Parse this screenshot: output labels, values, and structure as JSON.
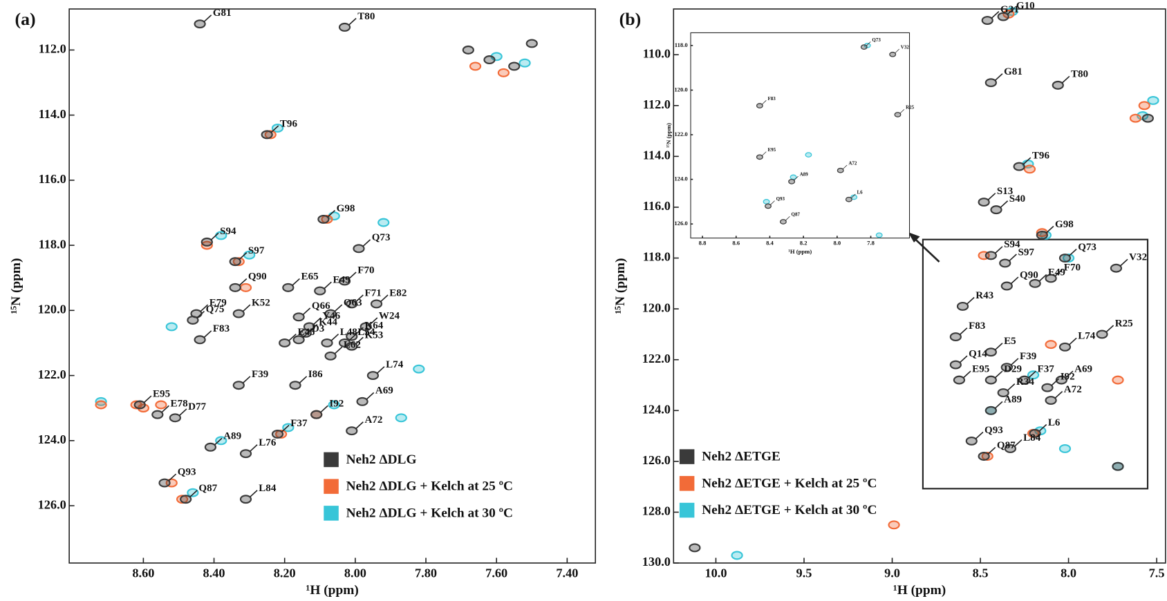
{
  "chart_data": [
    {
      "type": "scatter",
      "title": "(a)",
      "x_label": "¹H (ppm)",
      "y_label": "¹⁵N (ppm)",
      "xlim": [
        8.81,
        7.32
      ],
      "ylim": [
        127.76,
        110.74
      ],
      "xticks": [
        {
          "value": 8.6,
          "label": "8.60"
        },
        {
          "value": 8.4,
          "label": "8.40"
        },
        {
          "value": 8.2,
          "label": "8.20"
        },
        {
          "value": 8.0,
          "label": "8.00"
        },
        {
          "value": 7.8,
          "label": "7.80"
        },
        {
          "value": 7.6,
          "label": "7.60"
        },
        {
          "value": 7.4,
          "label": "7.40"
        }
      ],
      "yticks": [
        {
          "value": 112,
          "label": "112.0"
        },
        {
          "value": 114,
          "label": "114.0"
        },
        {
          "value": 116,
          "label": "116.0"
        },
        {
          "value": 118,
          "label": "118.0"
        },
        {
          "value": 120,
          "label": "120.0"
        },
        {
          "value": 122,
          "label": "122.0"
        },
        {
          "value": 124,
          "label": "124.0"
        },
        {
          "value": 126,
          "label": "126.0"
        }
      ],
      "legend": "lower right",
      "series": [
        {
          "name": "Neh2 ΔDLG",
          "color": "#3a3a3a",
          "x": [
            8.44,
            8.03,
            8.25,
            8.09,
            8.42,
            8.34,
            7.99,
            8.34,
            8.19,
            8.1,
            8.03,
            8.01,
            7.94,
            7.97,
            8.45,
            8.07,
            8.33,
            8.16,
            8.01,
            8.46,
            8.13,
            8.14,
            8.03,
            8.44,
            8.16,
            8.08,
            8.2,
            8.01,
            8.07,
            7.95,
            8.33,
            8.17,
            7.98,
            8.61,
            8.56,
            8.51,
            8.11,
            8.22,
            8.01,
            8.41,
            8.31,
            8.54,
            8.48,
            8.31,
            7.68,
            7.62,
            7.55,
            7.5
          ],
          "values": [
            111.2,
            111.3,
            114.6,
            117.2,
            117.9,
            118.5,
            118.1,
            119.3,
            119.3,
            119.4,
            119.1,
            119.8,
            119.8,
            120.5,
            120.1,
            120.1,
            120.1,
            120.2,
            120.8,
            120.3,
            120.5,
            120.7,
            121.0,
            120.9,
            120.9,
            121.0,
            121.0,
            121.1,
            121.4,
            122.0,
            122.3,
            122.3,
            122.8,
            122.9,
            123.2,
            123.3,
            123.2,
            123.8,
            123.7,
            124.2,
            124.4,
            125.3,
            125.8,
            125.8,
            112.0,
            112.3,
            112.5,
            111.8
          ],
          "labels": [
            "G81",
            "T80",
            "T96",
            "G98",
            "S94",
            "S97",
            "Q73",
            "Q90",
            "E65",
            "E49",
            "F70",
            "F71",
            "E82",
            "W24",
            "E79",
            "Q63",
            "K52",
            "Q66",
            "K64",
            "Q75",
            "Y46",
            "K44",
            "L54",
            "F83",
            "D3",
            "L48",
            "E45",
            "K53",
            "L62",
            "L74",
            "F39",
            "I86",
            "A69",
            "E95",
            "E78",
            "D77",
            "I92",
            "F37",
            "A72",
            "A89",
            "L76",
            "Q93",
            "Q87",
            "L84",
            null,
            null,
            null,
            null
          ]
        },
        {
          "name": "Neh2 ΔDLG + Kelch at 25  ºC",
          "color": "#f26b38",
          "x": [
            8.24,
            8.08,
            8.42,
            8.33,
            8.31,
            8.21,
            8.11,
            8.49,
            8.52,
            8.6,
            8.72,
            8.55,
            8.62,
            7.66,
            7.58
          ],
          "values": [
            114.6,
            117.2,
            118.0,
            118.5,
            119.3,
            123.8,
            123.2,
            125.8,
            125.3,
            123.0,
            122.9,
            122.9,
            122.9,
            112.5,
            112.7
          ]
        },
        {
          "name": "Neh2 ΔDLG + Kelch at 30  ºC",
          "color": "#38c5d8",
          "x": [
            8.22,
            8.06,
            8.38,
            8.3,
            7.92,
            7.87,
            7.82,
            8.19,
            8.06,
            8.38,
            8.46,
            8.72,
            7.6,
            7.52,
            8.52
          ],
          "values": [
            114.4,
            117.1,
            117.7,
            118.3,
            117.3,
            123.3,
            121.8,
            123.6,
            122.9,
            124.0,
            125.6,
            122.8,
            112.2,
            112.4,
            120.5
          ]
        }
      ]
    },
    {
      "type": "scatter",
      "title": "(b)",
      "x_label": "¹H (ppm)",
      "y_label": "¹⁵N (ppm)",
      "xlim": [
        10.24,
        7.45
      ],
      "ylim": [
        130.0,
        108.2
      ],
      "xticks": [
        {
          "value": 10,
          "label": "10.0"
        },
        9.5,
        {
          "value": 9,
          "label": "9.0"
        },
        8.5,
        {
          "value": 8,
          "label": "8.0"
        },
        7.5
      ],
      "yticks": [
        {
          "value": 110,
          "label": "110.0"
        },
        {
          "value": 112,
          "label": "112.0"
        },
        {
          "value": 114,
          "label": "114.0"
        },
        {
          "value": 116,
          "label": "116.0"
        },
        {
          "value": 118,
          "label": "118.0"
        },
        {
          "value": 120,
          "label": "120.0"
        },
        {
          "value": 122,
          "label": "122.0"
        },
        {
          "value": 124,
          "label": "124.0"
        },
        {
          "value": 126,
          "label": "126.0"
        },
        {
          "value": 128,
          "label": "128.0"
        },
        {
          "value": 130,
          "label": "130.0"
        }
      ],
      "legend": "lower left",
      "series": [
        {
          "name": "Neh2 ΔETGE",
          "color": "#3a3a3a",
          "x": [
            8.46,
            8.37,
            8.44,
            8.06,
            8.28,
            8.48,
            8.41,
            8.15,
            8.44,
            8.36,
            8.02,
            7.73,
            8.35,
            8.1,
            8.19,
            8.6,
            8.64,
            8.44,
            8.64,
            8.62,
            8.35,
            8.44,
            8.37,
            8.44,
            8.55,
            8.48,
            8.33,
            8.19,
            8.12,
            8.1,
            8.02,
            7.81,
            8.04,
            8.25,
            10.12,
            7.72,
            7.55
          ],
          "values": [
            108.65,
            108.5,
            111.1,
            111.2,
            114.4,
            115.8,
            116.1,
            117.1,
            117.9,
            118.2,
            118.0,
            118.4,
            119.1,
            118.8,
            119.0,
            119.9,
            121.1,
            121.7,
            122.2,
            122.8,
            122.3,
            122.8,
            123.3,
            124.0,
            125.2,
            125.8,
            125.5,
            124.9,
            123.1,
            123.6,
            121.5,
            121.0,
            122.8,
            122.8,
            129.4,
            126.2,
            112.5
          ],
          "labels": [
            "G31",
            "G10",
            "G81",
            "T80",
            "T96",
            "S13",
            "S40",
            "G98",
            "S94",
            "S97",
            "Q73",
            "V32",
            "Q90",
            "F70",
            "E49",
            "R43",
            "F83",
            "E5",
            "Q14",
            "E95",
            "F39",
            "D29",
            "R34",
            "A89",
            "Q93",
            "Q87",
            "L84",
            "L6",
            "I92",
            "A72",
            "L74",
            "R25",
            "A69",
            "F37",
            null,
            null,
            null
          ]
        },
        {
          "name": "Neh2 ΔETGE + Kelch at 25  ºC",
          "color": "#f26b38",
          "x": [
            8.34,
            8.22,
            8.15,
            8.48,
            8.2,
            8.46,
            7.72,
            7.62,
            7.57,
            8.99,
            8.1
          ],
          "values": [
            108.4,
            114.5,
            117.0,
            117.9,
            124.9,
            125.8,
            122.8,
            112.5,
            112.0,
            128.5,
            121.4
          ]
        },
        {
          "name": "Neh2 ΔETGE + Kelch at 30  ºC",
          "color": "#38c5d8",
          "x": [
            8.32,
            8.23,
            8.13,
            8.0,
            8.16,
            8.02,
            7.72,
            7.58,
            7.52,
            9.88,
            8.44,
            8.2
          ],
          "values": [
            108.3,
            114.3,
            117.1,
            118.0,
            124.8,
            125.5,
            126.2,
            112.4,
            111.8,
            129.7,
            124.0,
            122.6
          ]
        }
      ]
    },
    {
      "type": "scatter",
      "x_label": "¹H (ppm)",
      "y_label": "¹⁵N (ppm)",
      "xlim": [
        8.87,
        7.57
      ],
      "ylim": [
        126.63,
        117.43
      ],
      "xticks": [
        8.8,
        8.6,
        8.4,
        8.2,
        {
          "value": 8,
          "label": "8.0"
        },
        7.8
      ],
      "yticks": [
        {
          "value": 118,
          "label": "118.0"
        },
        {
          "value": 120,
          "label": "120.0"
        },
        {
          "value": 122,
          "label": "122.0"
        },
        {
          "value": 124,
          "label": "124.0"
        },
        {
          "value": 126,
          "label": "126.0"
        }
      ],
      "series": [
        {
          "color": "#3a3a3a",
          "x": [
            7.84,
            7.67,
            7.64,
            8.27,
            8.41,
            8.32,
            7.93,
            7.98,
            8.46,
            8.46
          ],
          "values": [
            118.07,
            118.4,
            121.1,
            124.1,
            125.2,
            125.9,
            124.9,
            123.6,
            123.0,
            120.7
          ],
          "labels": [
            "Q73",
            "V32",
            "R25",
            "A89",
            "Q93",
            "Q87",
            "L6",
            "A72",
            "E95",
            "F83"
          ]
        },
        {
          "color": "#38c5d8",
          "x": [
            7.82,
            8.26,
            8.42,
            7.9,
            8.17,
            7.75
          ],
          "values": [
            118.0,
            123.9,
            125.0,
            124.8,
            122.9,
            126.5
          ]
        }
      ]
    }
  ]
}
